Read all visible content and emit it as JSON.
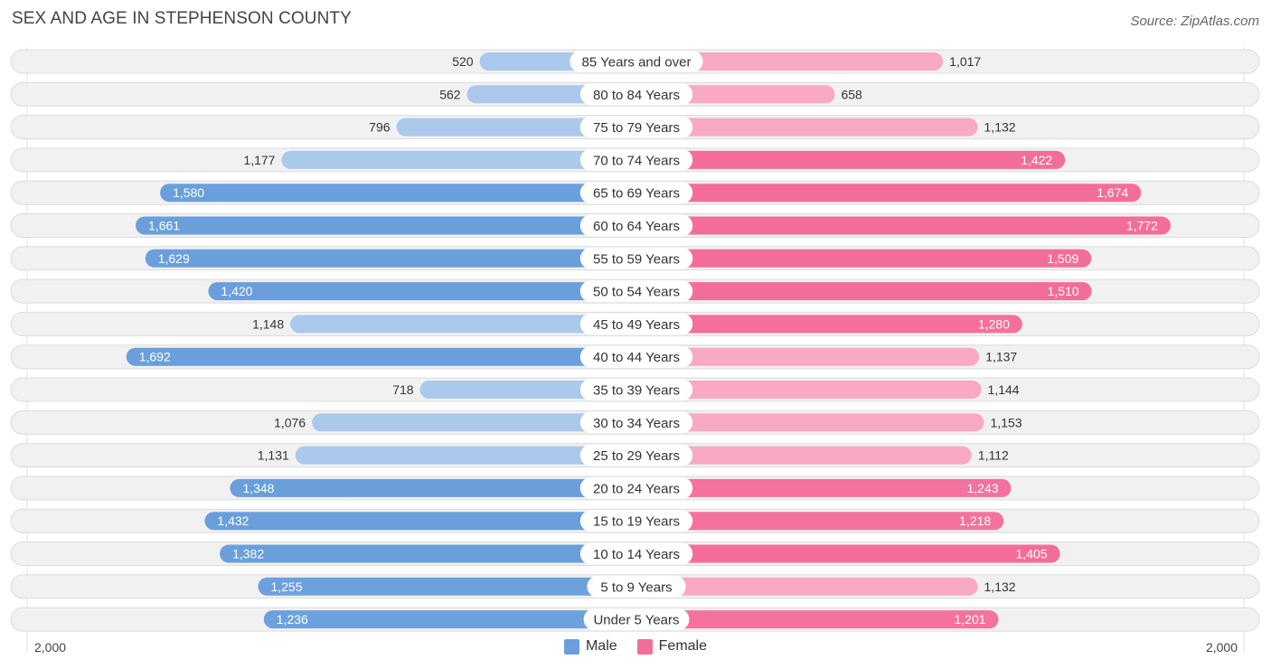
{
  "header": {
    "title": "SEX AND AGE IN STEPHENSON COUNTY",
    "source": "Source: ZipAtlas.com"
  },
  "colors": {
    "male_dark": "#6a9fdc",
    "male_light": "#aac9ec",
    "female_dark": "#f46d99",
    "female_light": "#f9a9c3",
    "row_bg": "#f1f1f1",
    "row_border": "#dcdcdc"
  },
  "chart_data": {
    "type": "bar",
    "orientation": "horizontal-diverging",
    "title": "SEX AND AGE IN STEPHENSON COUNTY",
    "categories": [
      "85 Years and over",
      "80 to 84 Years",
      "75 to 79 Years",
      "70 to 74 Years",
      "65 to 69 Years",
      "60 to 64 Years",
      "55 to 59 Years",
      "50 to 54 Years",
      "45 to 49 Years",
      "40 to 44 Years",
      "35 to 39 Years",
      "30 to 34 Years",
      "25 to 29 Years",
      "20 to 24 Years",
      "15 to 19 Years",
      "10 to 14 Years",
      "5 to 9 Years",
      "Under 5 Years"
    ],
    "series": [
      {
        "name": "Male",
        "values": [
          520,
          562,
          796,
          1177,
          1580,
          1661,
          1629,
          1420,
          1148,
          1692,
          718,
          1076,
          1131,
          1348,
          1432,
          1382,
          1255,
          1236
        ],
        "labels": [
          "520",
          "562",
          "796",
          "1,177",
          "1,580",
          "1,661",
          "1,629",
          "1,420",
          "1,148",
          "1,692",
          "718",
          "1,076",
          "1,131",
          "1,348",
          "1,432",
          "1,382",
          "1,255",
          "1,236"
        ]
      },
      {
        "name": "Female",
        "values": [
          1017,
          658,
          1132,
          1422,
          1674,
          1772,
          1509,
          1510,
          1280,
          1137,
          1144,
          1153,
          1112,
          1243,
          1218,
          1405,
          1132,
          1201
        ],
        "labels": [
          "1,017",
          "658",
          "1,132",
          "1,422",
          "1,674",
          "1,772",
          "1,509",
          "1,510",
          "1,280",
          "1,137",
          "1,144",
          "1,153",
          "1,112",
          "1,243",
          "1,218",
          "1,405",
          "1,132",
          "1,201"
        ]
      }
    ],
    "xlim": [
      -2000,
      2000
    ],
    "axis_labels": {
      "left": "2,000",
      "right": "2,000"
    },
    "legend": [
      "Male",
      "Female"
    ],
    "legend_position": "bottom-center"
  }
}
